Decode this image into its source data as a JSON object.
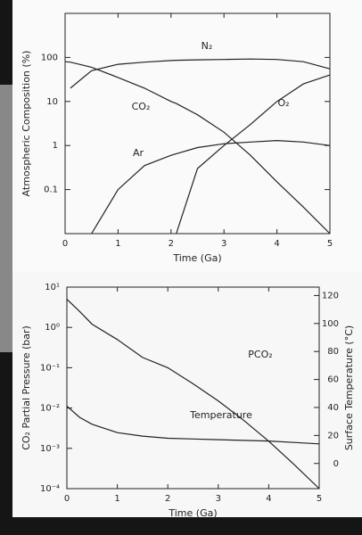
{
  "chart_data": [
    {
      "type": "line",
      "ylog": true,
      "xlabel": "Time (Ga)",
      "ylabel": "Atmospheric Composition (%)",
      "x": [
        0,
        0.1,
        0.5,
        1,
        1.5,
        2,
        2.1,
        2.5,
        3,
        3.5,
        4,
        4.5,
        5
      ],
      "xlim": [
        0,
        5
      ],
      "xticks": [
        0,
        1,
        2,
        3,
        4,
        5
      ],
      "ylim": [
        0.01,
        1000
      ],
      "yticks": [
        0.1,
        1,
        10,
        100
      ],
      "series": [
        {
          "name": "N₂",
          "color": "#222",
          "values": [
            null,
            20,
            50,
            70,
            78,
            85,
            86,
            88,
            90,
            92,
            90,
            80,
            55
          ]
        },
        {
          "name": "CO₂",
          "color": "#222",
          "values": [
            80,
            78,
            60,
            35,
            20,
            10,
            9,
            5,
            2,
            0.6,
            0.15,
            0.04,
            0.01
          ]
        },
        {
          "name": "Ar",
          "color": "#222",
          "values": [
            null,
            null,
            0.01,
            0.1,
            0.35,
            0.6,
            0.65,
            0.9,
            1.1,
            1.2,
            1.3,
            1.2,
            1.0
          ]
        },
        {
          "name": "O₂",
          "color": "#222",
          "values": [
            null,
            null,
            null,
            null,
            null,
            null,
            0.01,
            0.3,
            1.0,
            3,
            10,
            25,
            40
          ]
        }
      ]
    },
    {
      "type": "line",
      "ylog": true,
      "xlabel": "Time (Ga)",
      "ylabel": "CO₂ Partial Pressure (bar)",
      "y2label": "Surface Temperature (°C)",
      "x": [
        0,
        0.25,
        0.5,
        1,
        1.5,
        2,
        2.5,
        3,
        3.5,
        4,
        4.5,
        5
      ],
      "xlim": [
        0,
        5
      ],
      "xticks": [
        0,
        1,
        2,
        3,
        4,
        5
      ],
      "ylim": [
        0.0001,
        10
      ],
      "yticks": [
        {
          "value": 10,
          "label": "10¹"
        },
        {
          "value": 1,
          "label": "10⁰"
        },
        {
          "value": 0.1,
          "label": "10⁻¹"
        },
        {
          "value": 0.01,
          "label": "10⁻²"
        },
        {
          "value": 0.001,
          "label": "10⁻³"
        },
        {
          "value": 0.0001,
          "label": "10⁻⁴"
        }
      ],
      "y2lim": [
        -18,
        126
      ],
      "y2ticks": [
        0,
        20,
        40,
        60,
        80,
        100,
        120
      ],
      "series": [
        {
          "name": "PCO₂",
          "color": "#222",
          "values": [
            5,
            2.5,
            1.2,
            0.5,
            0.18,
            0.1,
            0.04,
            0.015,
            0.005,
            0.0015,
            0.0004,
            0.0001
          ]
        },
        {
          "name": "Temperature",
          "color": "#222",
          "axis": "y2",
          "values": [
            41,
            33,
            28,
            22,
            19.5,
            18,
            17.5,
            17,
            16.5,
            16,
            15,
            14
          ]
        }
      ]
    }
  ]
}
